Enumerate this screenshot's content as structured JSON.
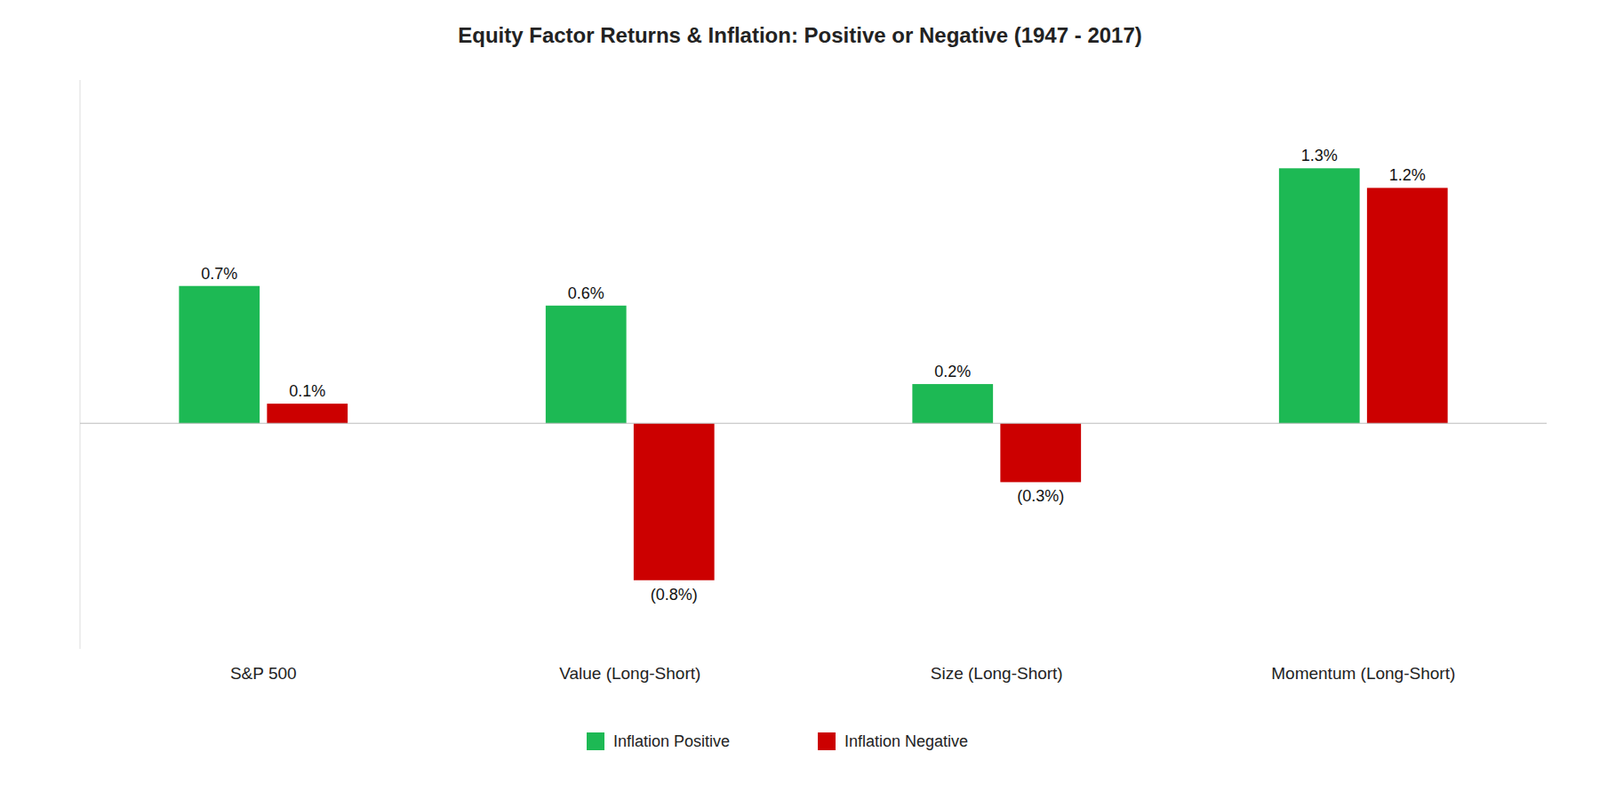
{
  "chart_data": {
    "type": "bar",
    "title": "Equity Factor Returns & Inflation: Positive or Negative (1947 - 2017)",
    "categories": [
      "S&P 500",
      "Value (Long-Short)",
      "Size (Long-Short)",
      "Momentum (Long-Short)"
    ],
    "series": [
      {
        "name": "Inflation Positive",
        "color": "#1DB954",
        "values": [
          0.7,
          0.6,
          0.2,
          1.3
        ],
        "value_labels": [
          "0.7%",
          "0.6%",
          "0.2%",
          "1.3%"
        ]
      },
      {
        "name": "Inflation Negative",
        "color": "#CC0000",
        "values": [
          0.1,
          -0.8,
          -0.3,
          1.2
        ],
        "value_labels": [
          "0.1%",
          "(0.8%)",
          "(0.3%)",
          "1.2%"
        ]
      }
    ],
    "ylim": [
      -1.15,
      1.75
    ],
    "data_labels": true,
    "tick_labels": "x",
    "legend": "bottom",
    "grid": false
  }
}
